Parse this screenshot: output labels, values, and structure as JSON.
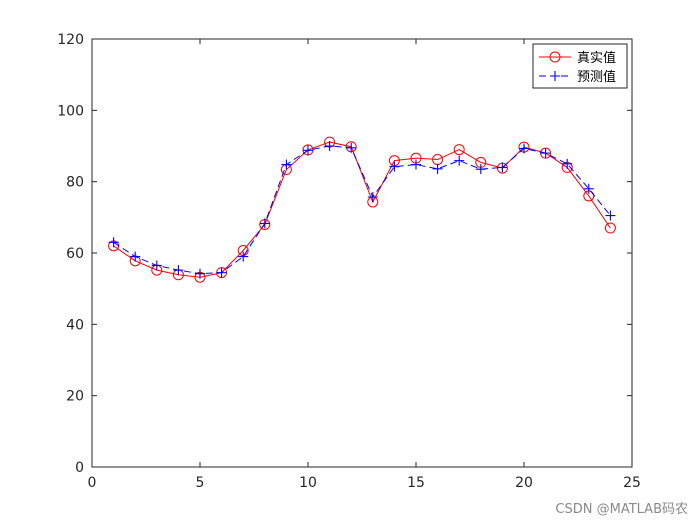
{
  "chart_data": {
    "type": "line",
    "title": "",
    "xlabel": "",
    "ylabel": "",
    "xlim": [
      0,
      25
    ],
    "ylim": [
      0,
      120
    ],
    "x_ticks": [
      0,
      5,
      10,
      15,
      20,
      25
    ],
    "y_ticks": [
      0,
      20,
      40,
      60,
      80,
      100,
      120
    ],
    "grid": false,
    "legend_position": "top-right",
    "x": [
      1,
      2,
      3,
      4,
      5,
      6,
      7,
      8,
      9,
      10,
      11,
      12,
      13,
      14,
      15,
      16,
      17,
      18,
      19,
      20,
      21,
      22,
      23,
      24
    ],
    "series": [
      {
        "name": "真实值",
        "color": "#ff0000",
        "line_style": "solid",
        "marker": "circle",
        "values": [
          62,
          57.8,
          55.2,
          53.9,
          53.2,
          54.5,
          60.7,
          68,
          83.4,
          88.9,
          91.1,
          89.8,
          74.3,
          85.9,
          86.6,
          86.2,
          89,
          85.4,
          83.8,
          89.7,
          88,
          84,
          76,
          67
        ]
      },
      {
        "name": "预测值",
        "color": "#0000ff",
        "line_style": "dashed",
        "marker": "plus",
        "values": [
          63,
          59,
          56.5,
          55.2,
          54.2,
          54.5,
          59,
          68.3,
          84.8,
          88.8,
          90,
          89.5,
          75.7,
          84.2,
          84.8,
          83.6,
          85.9,
          83.5,
          84,
          89.3,
          88,
          85,
          78,
          70.5
        ]
      }
    ]
  },
  "watermark": "CSDN @MATLAB码农"
}
